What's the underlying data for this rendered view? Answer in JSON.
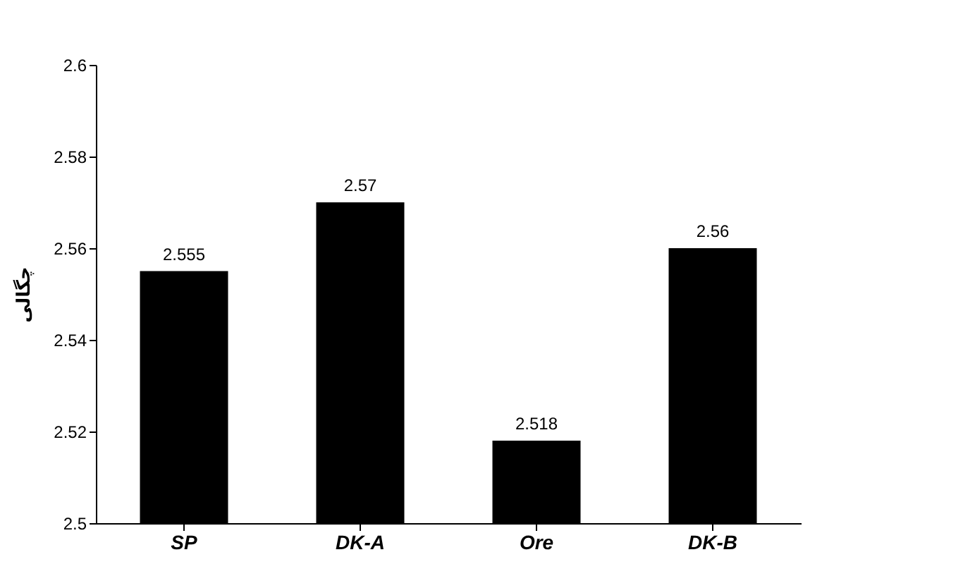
{
  "chart_data": {
    "type": "bar",
    "ylabel": "چگالی",
    "categories": [
      "SP",
      "DK-A",
      "Ore",
      "DK-B"
    ],
    "values": [
      2.555,
      2.57,
      2.518,
      2.56
    ],
    "color": "#000000",
    "data_labels": true,
    "ylim": [
      2.5,
      2.6
    ],
    "yticks": [
      {
        "value": 2.5,
        "label": "2.5"
      },
      2.52,
      2.54,
      2.56,
      2.58,
      {
        "value": 2.6,
        "label": "2.6"
      }
    ],
    "grid": false
  }
}
